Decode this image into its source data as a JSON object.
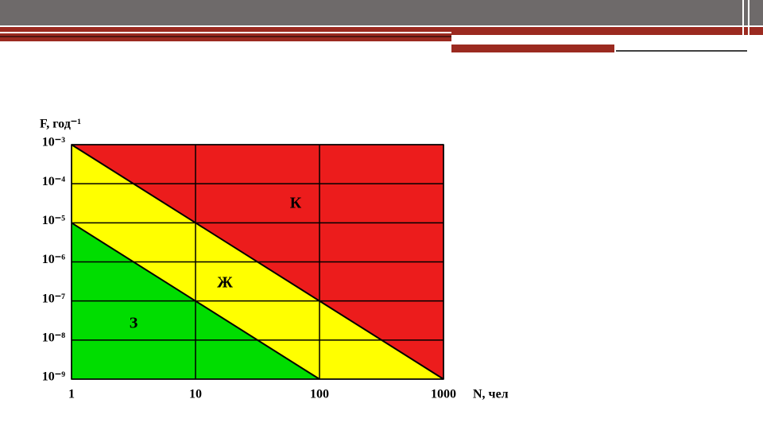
{
  "chart_data": {
    "type": "fn-diagram",
    "x_label": "N, чел",
    "y_label": "F, год⁻¹",
    "xscale": "log",
    "yscale": "log",
    "grid": true,
    "xlim": [
      1,
      1000
    ],
    "ylim": [
      1e-09,
      0.001
    ],
    "xticks": [
      1,
      10,
      100,
      1000
    ],
    "yticks": [
      {
        "value": 0.001,
        "label": "10⁻³"
      },
      {
        "value": 0.0001,
        "label": "10⁻⁴"
      },
      {
        "value": 1e-05,
        "label": "10⁻⁵"
      },
      {
        "value": 1e-06,
        "label": "10⁻⁶"
      },
      {
        "value": 1e-07,
        "label": "10⁻⁷"
      },
      {
        "value": 1e-08,
        "label": "10⁻⁸"
      },
      {
        "value": 1e-09,
        "label": "10⁻⁹"
      }
    ],
    "boundaries": [
      {
        "x": [
          1,
          10,
          100,
          1000
        ],
        "values": [
          0.001,
          1e-05,
          1e-07,
          1e-09
        ]
      },
      {
        "x": [
          1,
          10,
          100
        ],
        "values": [
          1e-05,
          1e-07,
          1e-09
        ]
      }
    ],
    "zones": [
      {
        "label": "К",
        "color": "#ec1c1c"
      },
      {
        "label": "Ж",
        "color": "#ffff00"
      },
      {
        "label": "З",
        "color": "#00dd00"
      }
    ]
  }
}
